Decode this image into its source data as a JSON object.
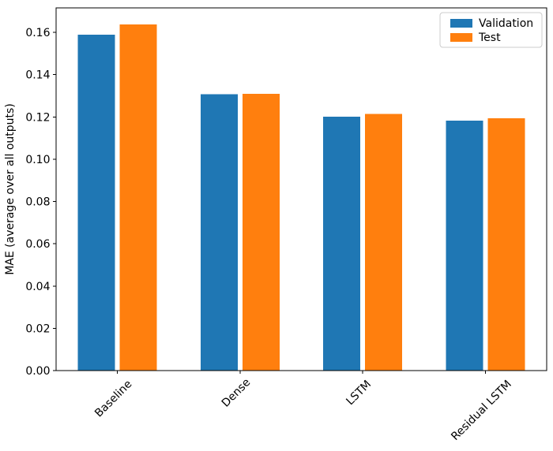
{
  "chart_data": {
    "type": "bar",
    "title": "",
    "categories": [
      "Baseline",
      "Dense",
      "LSTM",
      "Residual LSTM"
    ],
    "series": [
      {
        "name": "Validation",
        "color": "#1f77b4",
        "values": [
          0.1589,
          0.1308,
          0.1201,
          0.1183
        ]
      },
      {
        "name": "Test",
        "color": "#ff7f0e",
        "values": [
          0.1637,
          0.1309,
          0.1215,
          0.1193
        ]
      }
    ],
    "xlabel": "",
    "ylabel": "MAE (average over all outputs)",
    "ylim": [
      0,
      0.1716
    ],
    "ytick_labels": [
      "0.00",
      "0.02",
      "0.04",
      "0.06",
      "0.08",
      "0.10",
      "0.12",
      "0.14",
      "0.16"
    ],
    "xtick_rotation": 45,
    "grid": "off",
    "legend": {
      "position": "upper-right",
      "entries": [
        "Validation",
        "Test"
      ],
      "border_color": "#cccccc",
      "background": "#ffffff"
    },
    "axis_color": "#000000",
    "plot_background": "#ffffff"
  }
}
